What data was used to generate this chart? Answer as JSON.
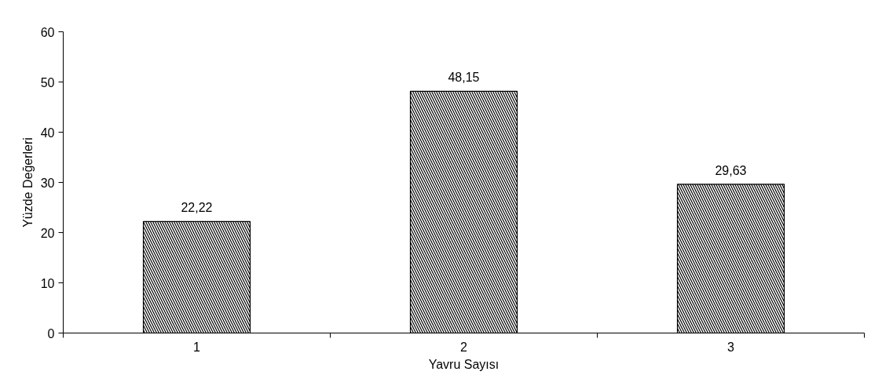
{
  "chart_data": {
    "type": "bar",
    "xlabel": "Yavru Sayısı",
    "ylabel": "Yüzde Değerleri",
    "categories": [
      "1",
      "2",
      "3"
    ],
    "values": [
      22.22,
      48.15,
      29.63
    ],
    "value_labels": [
      "22,22",
      "48,15",
      "29,63"
    ],
    "color": "#000000",
    "ylim": [
      0,
      60
    ],
    "yticks": [
      0,
      10,
      20,
      30,
      40,
      50,
      60
    ],
    "grid": false
  }
}
